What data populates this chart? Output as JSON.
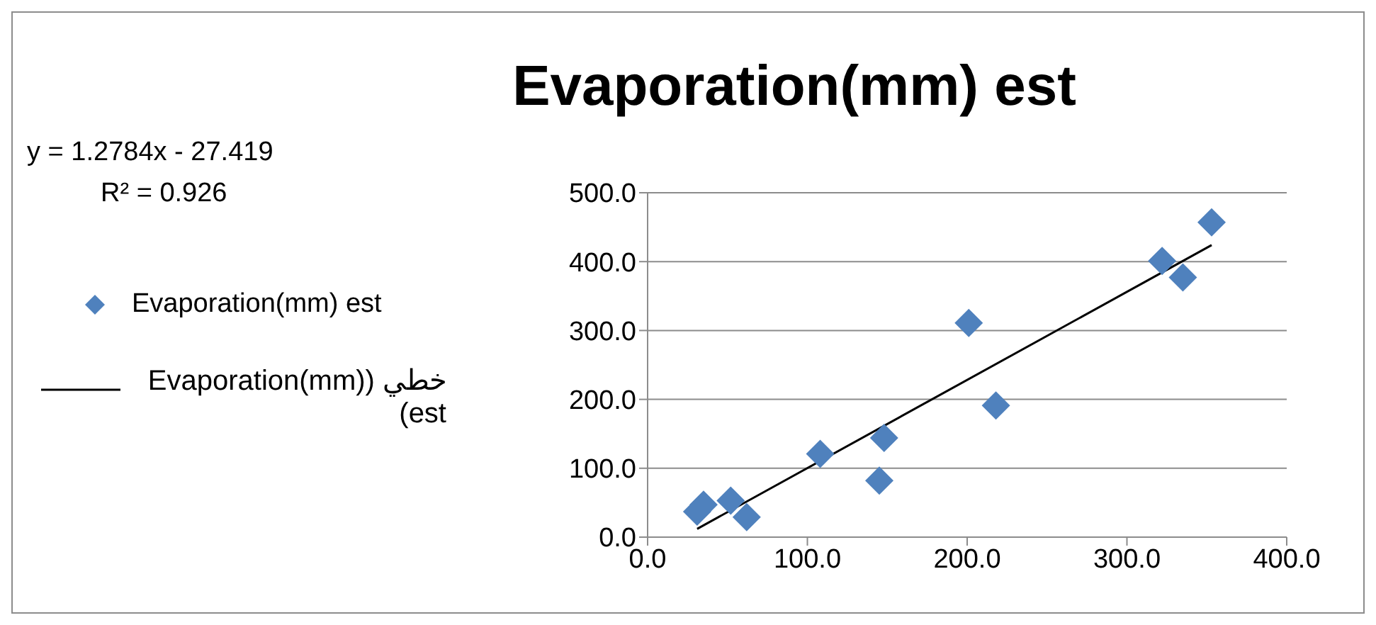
{
  "chart_data": {
    "type": "scatter",
    "title": "Evaporation(mm) est",
    "annotations": [
      "y = 1.2784x - 27.419",
      "R² = 0.926"
    ],
    "series": [
      {
        "name": "Evaporation(mm) est",
        "color": "#4f81bd",
        "marker": "diamond",
        "x": [
          31,
          35,
          52,
          62,
          108,
          145,
          148,
          201,
          218,
          322,
          335,
          353
        ],
        "values": [
          37,
          47,
          53,
          29,
          121,
          82,
          144,
          311,
          191,
          401,
          377,
          457
        ]
      },
      {
        "name": "خطي (Evaporation(mm) est)",
        "type": "line",
        "color": "#000000",
        "marker": "none",
        "line_style": "solid",
        "x": [
          31,
          353
        ],
        "values": [
          12,
          424
        ]
      }
    ],
    "xlim": [
      0,
      400
    ],
    "xticks": [
      {
        "value": 0,
        "label": "0.0"
      },
      {
        "value": 100,
        "label": "100.0"
      },
      {
        "value": 200,
        "label": "200.0"
      },
      {
        "value": 300,
        "label": "300.0"
      },
      {
        "value": 400,
        "label": "400.0"
      }
    ],
    "ylim": [
      0,
      500
    ],
    "yticks": [
      {
        "value": 0,
        "label": "0.0"
      },
      {
        "value": 100,
        "label": "100.0"
      },
      {
        "value": 200,
        "label": "200.0"
      },
      {
        "value": 300,
        "label": "300.0"
      },
      {
        "value": 400,
        "label": "400.0"
      },
      {
        "value": 500,
        "label": "500.0"
      }
    ],
    "grid": "y",
    "legend": "left"
  }
}
